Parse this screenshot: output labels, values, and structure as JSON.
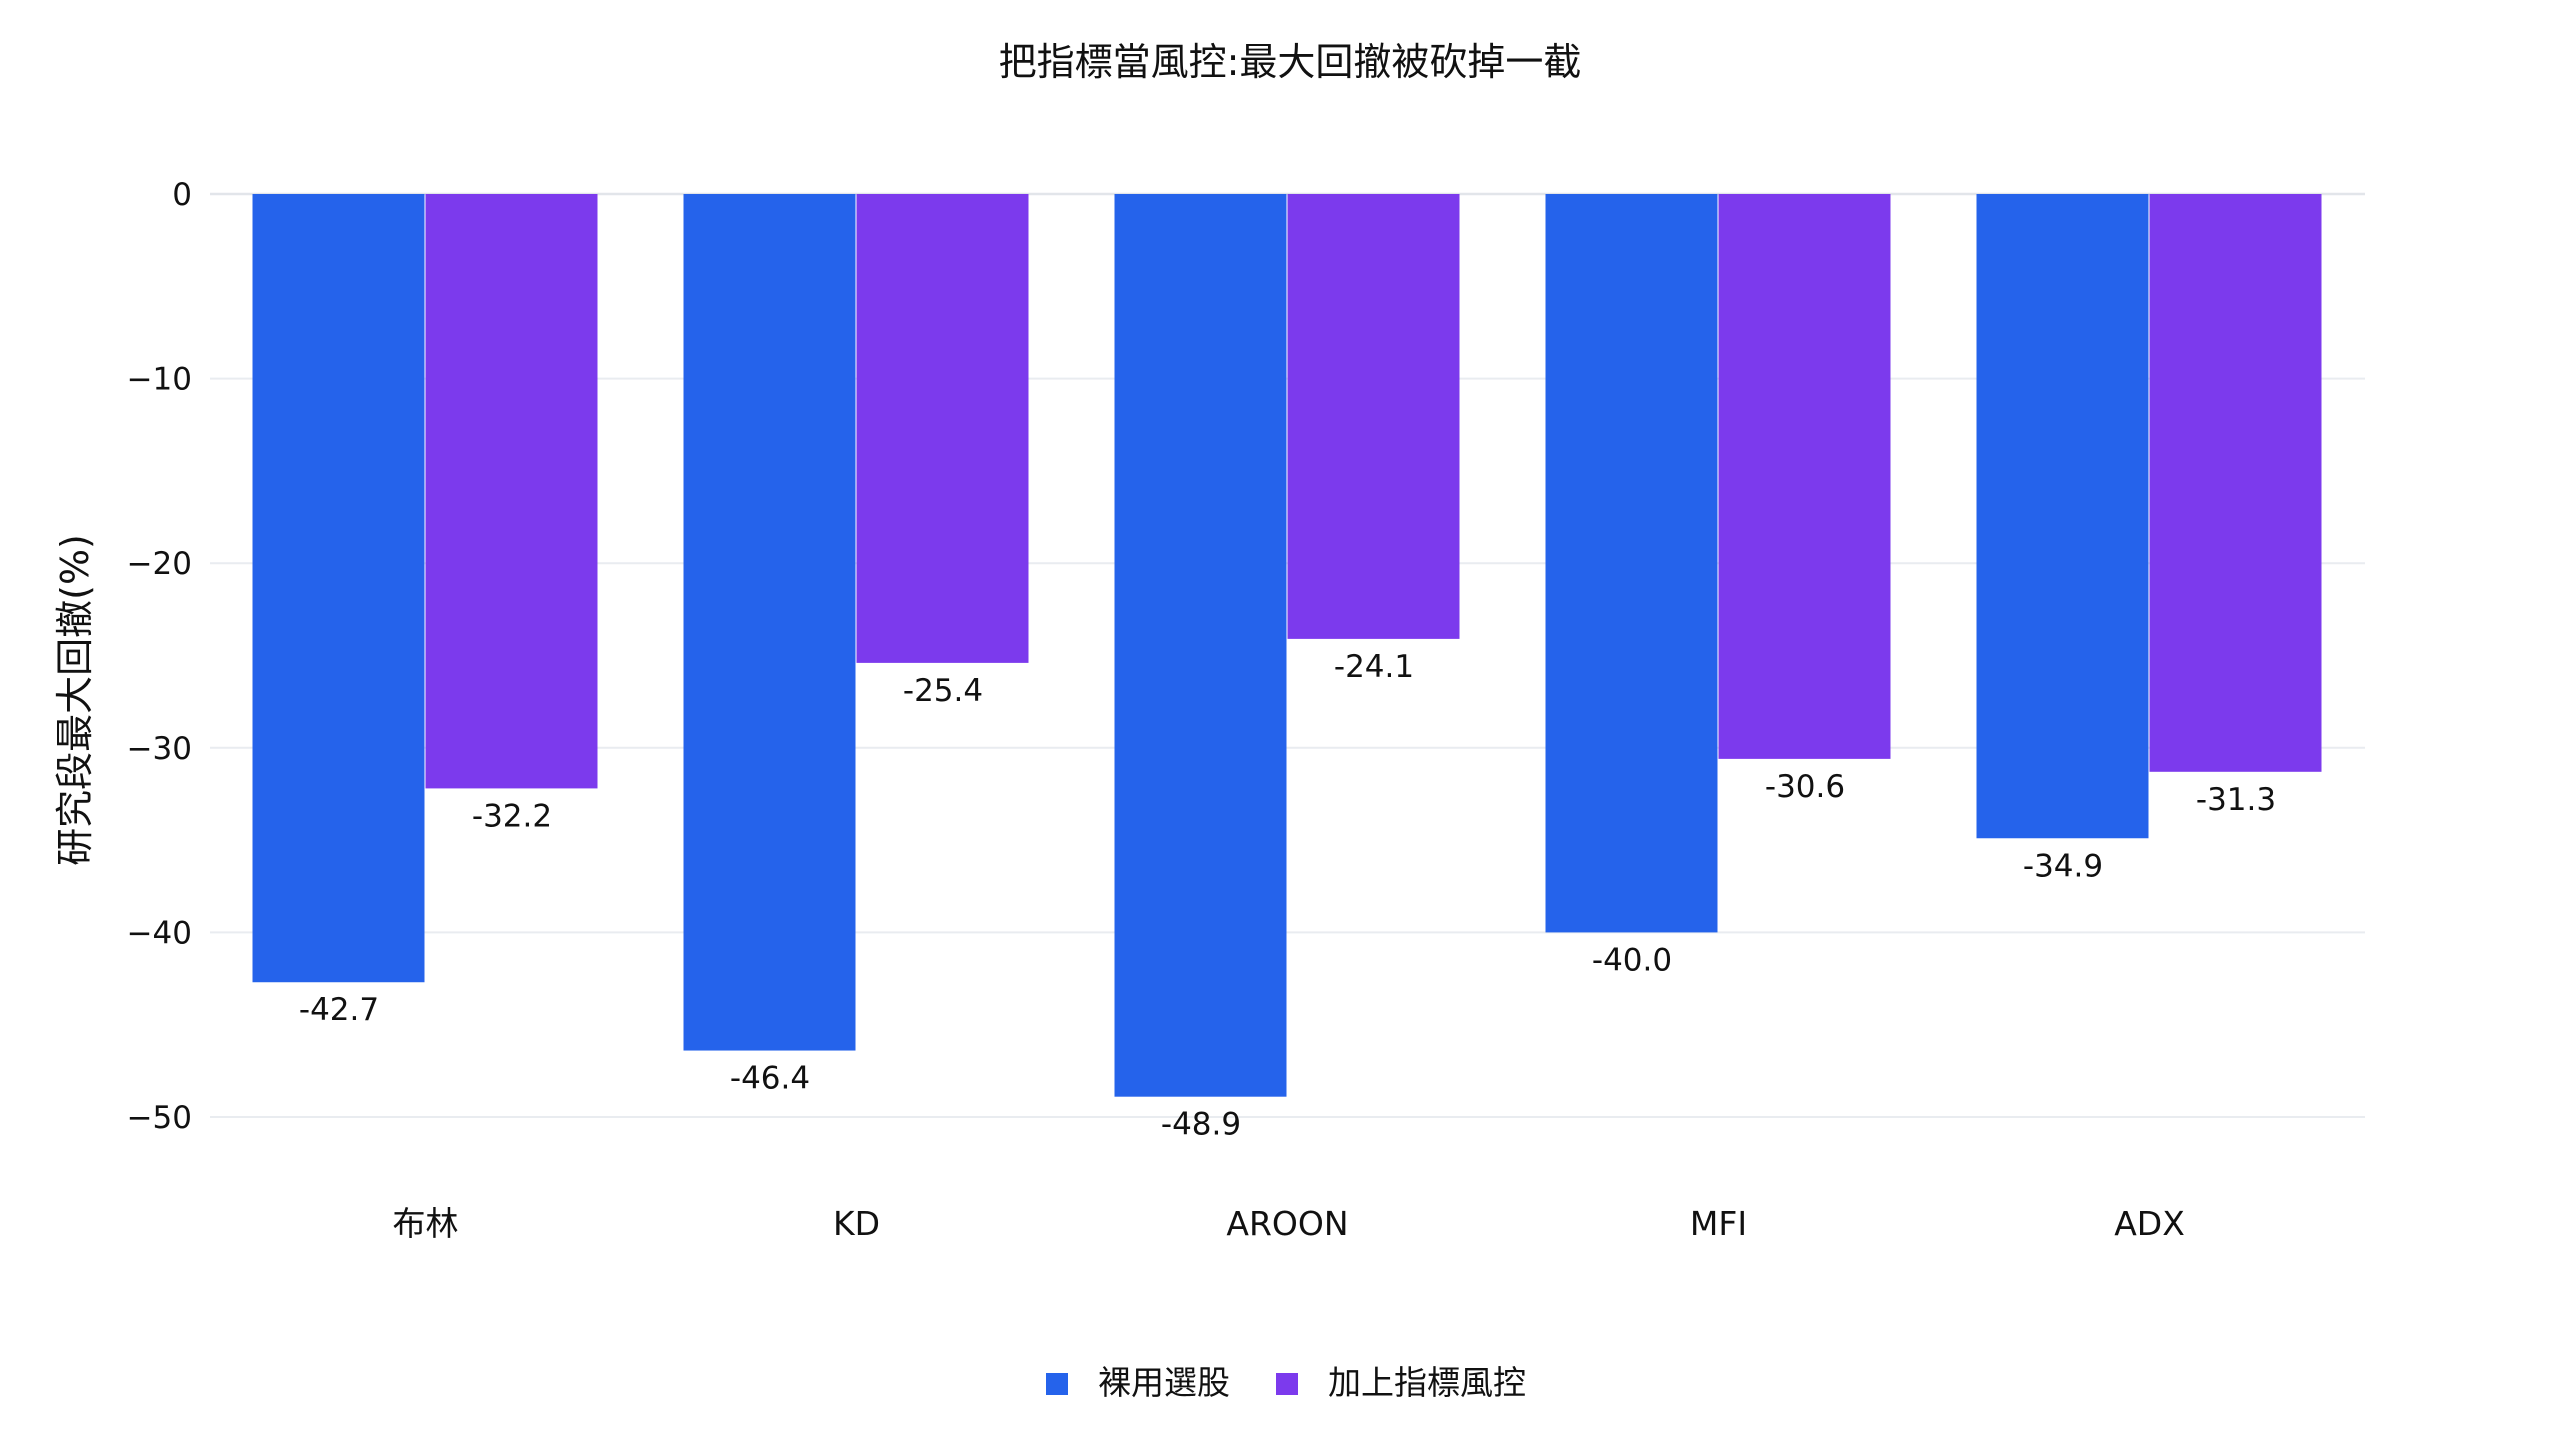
{
  "chart_data": {
    "type": "bar",
    "title": "把指標當風控:最大回撤被砍掉一截",
    "xlabel": "",
    "ylabel": "研究段最大回撤(%)",
    "categories": [
      "布林",
      "KD",
      "AROON",
      "MFI",
      "ADX"
    ],
    "series": [
      {
        "name": "裸用選股",
        "color": "#2563eb",
        "values": [
          -42.7,
          -46.4,
          -48.9,
          -40.0,
          -34.9
        ]
      },
      {
        "name": "加上指標風控",
        "color": "#7c3aed",
        "values": [
          -32.2,
          -25.4,
          -24.1,
          -30.6,
          -31.3
        ]
      }
    ],
    "ylim": [
      -50,
      0
    ],
    "yticks": [
      0,
      -10,
      -20,
      -30,
      -40,
      -50
    ],
    "ytick_labels": [
      "0",
      "−10",
      "−20",
      "−30",
      "−40",
      "−50"
    ],
    "grid": true,
    "legend_position": "bottom-center",
    "value_labels": true
  }
}
